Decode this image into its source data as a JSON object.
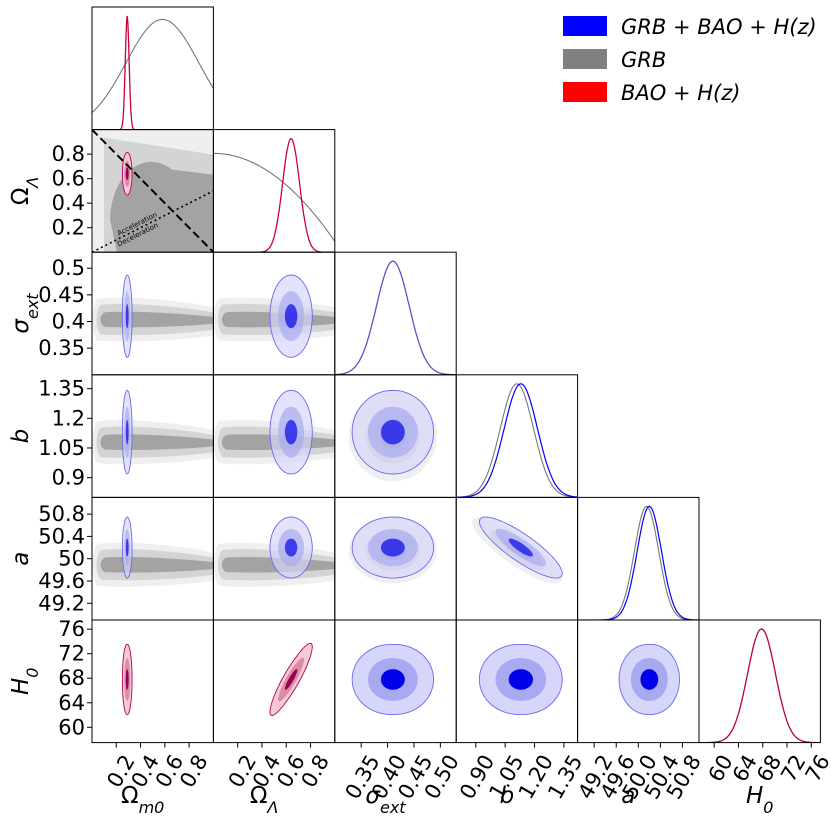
{
  "chart_data": {
    "type": "corner",
    "title": "",
    "parameters": [
      {
        "key": "Om",
        "label": "Ωm0",
        "sub": "m0",
        "base": "Ω",
        "range": [
          0.0,
          1.0
        ],
        "ticks": [
          "0.2",
          "0.4",
          "0.6",
          "0.8"
        ],
        "tickvals": [
          0.2,
          0.4,
          0.6,
          0.8
        ]
      },
      {
        "key": "OL",
        "label": "ΩΛ",
        "sub": "Λ",
        "base": "Ω",
        "range": [
          0.0,
          1.0
        ],
        "ticks": [
          "0.2",
          "0.4",
          "0.6",
          "0.8"
        ],
        "tickvals": [
          0.2,
          0.4,
          0.6,
          0.8
        ]
      },
      {
        "key": "sig",
        "label": "σext",
        "sub": "ext",
        "base": "σ",
        "range": [
          0.3,
          0.53
        ],
        "ticks": [
          "0.35",
          "0.40",
          "0.45",
          "0.50"
        ],
        "tickvals": [
          0.35,
          0.4,
          0.45,
          0.5
        ],
        "yticks": [
          "0.35",
          "0.4",
          "0.45",
          "0.5"
        ]
      },
      {
        "key": "b",
        "label": "b",
        "sub": "",
        "base": "b",
        "range": [
          0.8,
          1.42
        ],
        "ticks": [
          "0.90",
          "1.05",
          "1.20",
          "1.35"
        ],
        "tickvals": [
          0.9,
          1.05,
          1.2,
          1.35
        ],
        "yticks": [
          "0.9",
          "1.05",
          "1.2",
          "1.35"
        ]
      },
      {
        "key": "a",
        "label": "a",
        "sub": "",
        "base": "a",
        "range": [
          48.9,
          51.1
        ],
        "ticks": [
          "49.2",
          "49.6",
          "50.0",
          "50.4",
          "50.8"
        ],
        "tickvals": [
          49.2,
          49.6,
          50.0,
          50.4,
          50.8
        ],
        "yticks": [
          "49.2",
          "49.6",
          "50",
          "50.4",
          "50.8"
        ]
      },
      {
        "key": "H0",
        "label": "H0",
        "sub": "0",
        "base": "H",
        "range": [
          57.5,
          77.5
        ],
        "ticks": [
          "60",
          "64",
          "68",
          "72",
          "76"
        ],
        "tickvals": [
          60,
          64,
          68,
          72,
          76
        ]
      }
    ],
    "legend": [
      {
        "label": "GRB + BAO + H(z)",
        "color": "#0000ff"
      },
      {
        "label": "GRB",
        "color": "#808080"
      },
      {
        "label": "BAO + H(z)",
        "color": "#ff0000"
      }
    ],
    "series": [
      {
        "name": "GRB + BAO + H(z)",
        "color": "#0000ff",
        "means": {
          "Om": 0.29,
          "OL": 0.64,
          "sig": 0.41,
          "b": 1.13,
          "a": 50.2,
          "H0": 67.8
        },
        "sigmas": {
          "Om": 0.016,
          "OL": 0.07,
          "sig": 0.031,
          "b": 0.085,
          "a": 0.22,
          "H0": 2.3
        },
        "correlations": {
          "b|a": -0.85,
          "OL|H0": 0.9
        }
      },
      {
        "name": "GRB",
        "color": "#808080",
        "means": {
          "sig": 0.41,
          "b": 1.11,
          "a": 50.15
        },
        "sigmas": {
          "sig": 0.031,
          "b": 0.085,
          "a": 0.22
        },
        "correlations": {
          "b|a": -0.85
        }
      },
      {
        "name": "BAO + H(z)",
        "color": "#ff0000",
        "means": {
          "Om": 0.29,
          "OL": 0.64,
          "H0": 67.8
        },
        "sigmas": {
          "Om": 0.016,
          "OL": 0.07,
          "H0": 2.3
        },
        "correlations": {
          "OL|H0": 0.9
        }
      }
    ],
    "annotations": {
      "upper_line": "Acceleration",
      "lower_line": "Deceleration"
    }
  }
}
